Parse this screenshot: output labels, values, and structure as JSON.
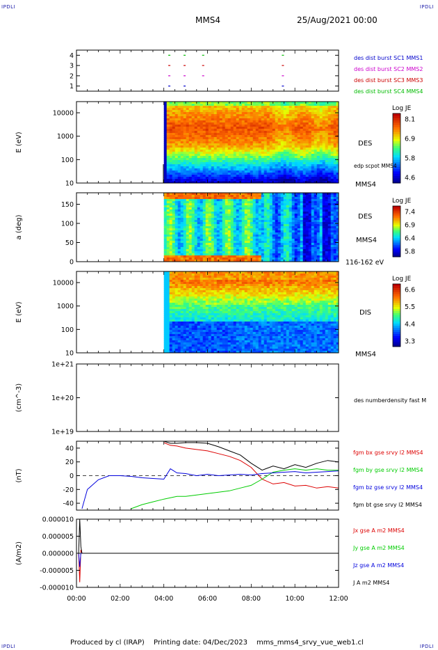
{
  "header": {
    "corner_left": "IPDLI",
    "corner_right": "IPDLI",
    "spacecraft": "MMS4",
    "date": "25/Aug/2021 00:00"
  },
  "footer": {
    "producer": "Produced by cl (IRAP)",
    "printing_date": "Printing date: 04/Dec/2023",
    "filename": "mms_mms4_srvy_vue_web1.cl",
    "corner_left": "IPDLI",
    "corner_right": "IPDLI"
  },
  "colors": {
    "mms1": "#0000cc",
    "mms2": "#cc00cc",
    "mms3": "#cc0000",
    "mms4": "#00bb00",
    "bx": "#dd0000",
    "by": "#00cc00",
    "bz": "#0000dd",
    "bt": "#000000"
  },
  "chart_data": [
    {
      "type": "scatter",
      "panel": "burst availability",
      "ylim": [
        0.5,
        4.5
      ],
      "y_ticks": [
        "1",
        "2",
        "3",
        "4"
      ],
      "legend": [
        "des dist burst SC1 MMS1",
        "des dist burst SC2 MMS2",
        "des dist burst SC3 MMS3",
        "des dist burst SC4 MMS4"
      ],
      "series": [
        {
          "name": "des dist burst SC1 MMS1",
          "level": 1,
          "x_hours": [
            4.25,
            4.95,
            9.45
          ]
        },
        {
          "name": "des dist burst SC2 MMS2",
          "level": 2,
          "x_hours": [
            4.25,
            4.95,
            5.8,
            9.45
          ]
        },
        {
          "name": "des dist burst SC3 MMS3",
          "level": 3,
          "x_hours": [
            4.25,
            4.95,
            5.8,
            9.45
          ]
        },
        {
          "name": "des dist burst SC4 MMS4",
          "level": 4,
          "x_hours": [
            4.25,
            4.95,
            5.8,
            9.45
          ]
        }
      ]
    },
    {
      "type": "heatmap",
      "panel": "electron energy spectrogram",
      "ylabel": "E (eV)",
      "yscale": "log",
      "ylim": [
        10,
        30000
      ],
      "y_ticks": [
        "10",
        "100",
        "1000",
        "10000"
      ],
      "label": "DES",
      "overlay": "edp scpot MMS4",
      "sc_label": "MMS4",
      "colorbar": {
        "title": "Log JE",
        "ticks": [
          "8.1",
          "6.9",
          "5.8",
          "4.6"
        ],
        "min": 4.6,
        "max": 8.1
      },
      "data_start_hours": 4.0
    },
    {
      "type": "heatmap",
      "panel": "electron pitch angle",
      "ylabel": "a (deg)",
      "ylim": [
        0,
        180
      ],
      "y_ticks": [
        "0",
        "50",
        "100",
        "150"
      ],
      "label": "DES",
      "sc_label": "MMS4",
      "energy_range": "116-162 eV",
      "colorbar": {
        "title": "Log JE",
        "ticks": [
          "7.4",
          "6.9",
          "6.4",
          "5.8"
        ],
        "min": 5.8,
        "max": 7.4
      },
      "data_start_hours": 4.0
    },
    {
      "type": "heatmap",
      "panel": "ion energy spectrogram",
      "ylabel": "E (eV)",
      "yscale": "log",
      "ylim": [
        10,
        30000
      ],
      "y_ticks": [
        "10",
        "100",
        "1000",
        "10000"
      ],
      "label": "DIS",
      "sc_label": "MMS4",
      "colorbar": {
        "title": "Log JE",
        "ticks": [
          "6.6",
          "5.5",
          "4.4",
          "3.3"
        ],
        "min": 3.3,
        "max": 6.6
      },
      "data_start_hours": 4.0
    },
    {
      "type": "line",
      "panel": "electron number density",
      "ylabel": "(cm^-3)",
      "yscale": "log",
      "y_ticks": [
        "1e+19",
        "1e+20",
        "1e+21"
      ],
      "legend": [
        "des numberdensity fast M"
      ],
      "series": []
    },
    {
      "type": "line",
      "panel": "magnetic field",
      "ylabel": "(nT)",
      "ylim": [
        -50,
        50
      ],
      "y_ticks": [
        "40",
        "20",
        "0",
        "-20",
        "-40"
      ],
      "legend": [
        "fgm bx gse srvy l2 MMS4",
        "fgm by gse srvy l2 MMS4",
        "fgm bz gse srvy l2 MMS4",
        "fgm bt gse srvy l2 MMS4"
      ],
      "x_hours": [
        0.25,
        0.5,
        1.0,
        1.5,
        2.0,
        2.5,
        3.0,
        3.5,
        4.0,
        4.3,
        4.6,
        5.0,
        5.5,
        6.0,
        6.5,
        7.0,
        7.5,
        8.0,
        8.5,
        9.0,
        9.5,
        10.0,
        10.5,
        11.0,
        11.5,
        12.0
      ],
      "series": [
        {
          "name": "fgm bx gse srvy l2 MMS4",
          "values": [
            null,
            null,
            null,
            null,
            null,
            null,
            null,
            null,
            48,
            44,
            43,
            40,
            38,
            36,
            32,
            28,
            22,
            12,
            -5,
            -12,
            -10,
            -15,
            -14,
            -18,
            -16,
            -18
          ]
        },
        {
          "name": "fgm by gse srvy l2 MMS4",
          "values": [
            null,
            null,
            null,
            null,
            null,
            -48,
            -42,
            -38,
            -34,
            -32,
            -30,
            -30,
            -28,
            -26,
            -24,
            -22,
            -18,
            -14,
            -5,
            5,
            8,
            10,
            8,
            10,
            8,
            8
          ]
        },
        {
          "name": "fgm bz gse srvy l2 MMS4",
          "values": [
            -48,
            -20,
            -6,
            0,
            0,
            -1,
            -3,
            -4,
            -5,
            10,
            4,
            3,
            0,
            2,
            0,
            1,
            2,
            1,
            3,
            4,
            5,
            6,
            4,
            5,
            6,
            7
          ]
        },
        {
          "name": "fgm bt gse srvy l2 MMS4",
          "values": [
            null,
            null,
            null,
            null,
            null,
            null,
            null,
            null,
            50,
            47,
            47,
            48,
            48,
            47,
            42,
            36,
            30,
            18,
            8,
            14,
            10,
            16,
            12,
            18,
            22,
            20
          ]
        }
      ]
    },
    {
      "type": "line",
      "panel": "current density",
      "ylabel": "(A/m2)",
      "ylim": [
        -1e-05,
        1e-05
      ],
      "y_ticks": [
        "0.000010",
        "0.000005",
        "0.000000",
        "-0.000005",
        "-0.000010"
      ],
      "legend": [
        "Jx gse A m2 MMS4",
        "Jy gse A m2 MMS4",
        "Jz gse A m2 MMS4",
        "J A m2 MMS4"
      ],
      "x_hours": [
        0.1,
        0.15,
        0.2,
        0.25,
        0.3,
        1.0,
        3.0,
        6.0,
        9.0,
        12.0
      ],
      "series": [
        {
          "name": "Jx gse A m2 MMS4",
          "values": [
            0,
            -8.5e-06,
            1e-06,
            0,
            0,
            0,
            0,
            0,
            0,
            0
          ]
        },
        {
          "name": "Jy gse A m2 MMS4",
          "values": [
            0,
            0,
            0,
            0,
            0,
            0,
            0,
            0,
            0,
            0
          ]
        },
        {
          "name": "Jz gse A m2 MMS4",
          "values": [
            0,
            -4e-06,
            0,
            0,
            0,
            0,
            0,
            0,
            0,
            0
          ]
        },
        {
          "name": "J A m2 MMS4",
          "values": [
            0,
            1e-05,
            2e-06,
            0,
            0,
            0,
            0,
            0,
            0,
            0
          ]
        }
      ]
    }
  ],
  "x_axis": {
    "range_hours": [
      0,
      12
    ],
    "tick_labels": [
      "00:00",
      "02:00",
      "04:00",
      "06:00",
      "08:00",
      "10:00",
      "12:00"
    ]
  }
}
